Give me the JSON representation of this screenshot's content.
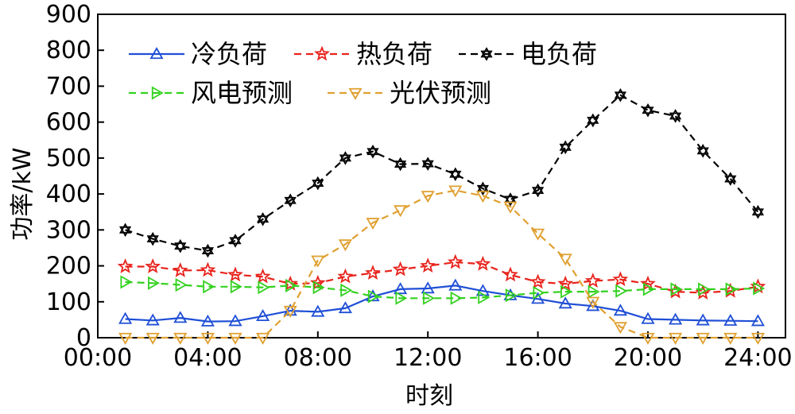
{
  "chart_data": {
    "type": "line",
    "xlabel": "时刻",
    "ylabel": "功率/kW",
    "x_hours": [
      1,
      2,
      3,
      4,
      5,
      6,
      7,
      8,
      9,
      10,
      11,
      12,
      13,
      14,
      15,
      16,
      17,
      18,
      19,
      20,
      21,
      22,
      23,
      24
    ],
    "xticks": [
      {
        "hour": 0,
        "label": "00:00"
      },
      {
        "hour": 4,
        "label": "04:00"
      },
      {
        "hour": 8,
        "label": "08:00"
      },
      {
        "hour": 12,
        "label": "12:00"
      },
      {
        "hour": 16,
        "label": "16:00"
      },
      {
        "hour": 20,
        "label": "20:00"
      },
      {
        "hour": 24,
        "label": "24:00"
      }
    ],
    "xlim": [
      0,
      25
    ],
    "ylim": [
      0,
      900
    ],
    "yticks": [
      0,
      100,
      200,
      300,
      400,
      500,
      600,
      700,
      800,
      900
    ],
    "grid": false,
    "legend_position": "top-left",
    "series": [
      {
        "name": "冷负荷",
        "color": "#1f4fd6",
        "dash": "solid",
        "marker": "triangle-up",
        "values": [
          52,
          48,
          55,
          45,
          46,
          60,
          75,
          72,
          82,
          115,
          135,
          137,
          145,
          130,
          118,
          108,
          95,
          88,
          75,
          52,
          50,
          48,
          47,
          46
        ]
      },
      {
        "name": "热负荷",
        "color": "#e8231c",
        "dash": "dashed",
        "marker": "star",
        "values": [
          198,
          198,
          187,
          188,
          175,
          170,
          150,
          152,
          170,
          180,
          190,
          200,
          210,
          205,
          175,
          155,
          150,
          158,
          162,
          150,
          128,
          125,
          130,
          142
        ]
      },
      {
        "name": "电负荷",
        "color": "#000000",
        "dash": "dashed",
        "marker": "hexagram",
        "values": [
          300,
          275,
          255,
          242,
          270,
          330,
          382,
          430,
          500,
          518,
          483,
          484,
          455,
          415,
          385,
          410,
          530,
          605,
          675,
          633,
          617,
          520,
          442,
          350
        ]
      },
      {
        "name": "风电预测",
        "color": "#33d11f",
        "dash": "dashed",
        "marker": "triangle-right",
        "values": [
          155,
          152,
          147,
          142,
          142,
          140,
          145,
          140,
          132,
          115,
          110,
          110,
          110,
          112,
          118,
          125,
          128,
          128,
          130,
          135,
          135,
          135,
          135,
          137
        ]
      },
      {
        "name": "光伏预测",
        "color": "#e0a030",
        "dash": "dashed",
        "marker": "triangle-down",
        "values": [
          0,
          0,
          0,
          0,
          0,
          0,
          75,
          215,
          260,
          320,
          355,
          395,
          410,
          395,
          365,
          290,
          220,
          100,
          30,
          0,
          0,
          0,
          0,
          0
        ]
      }
    ]
  }
}
